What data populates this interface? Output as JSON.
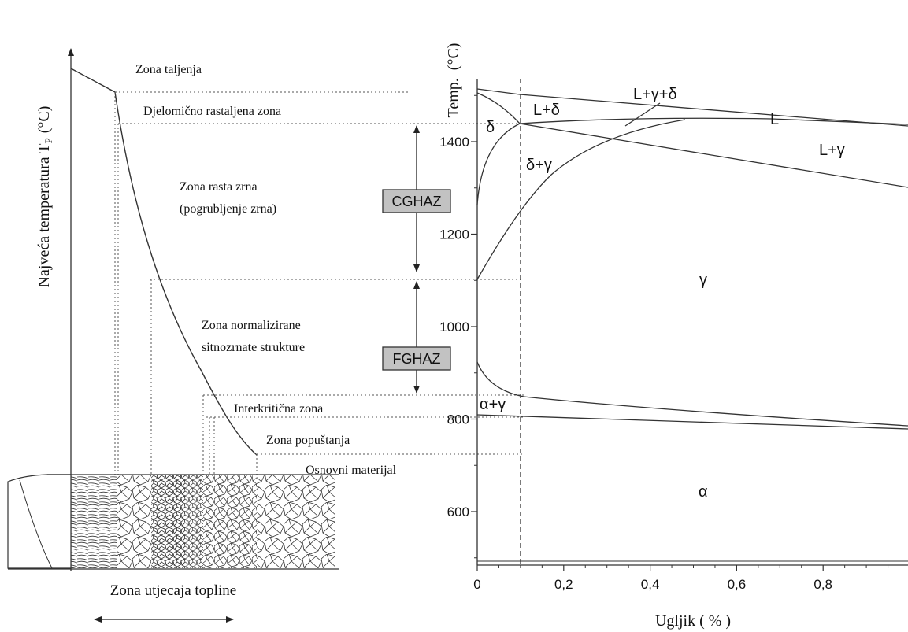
{
  "left_panel": {
    "y_axis_label": "Najveća temperatura T",
    "y_axis_subscript": "P",
    "y_axis_unit": "(°C)",
    "zones": [
      "Zona taljenja",
      "Djelomično rastaljena zona",
      "Zona rasta zrna",
      "(pogrubljenje zrna)",
      "Zona normalizirane",
      "sitnozrnate strukture",
      "Interkritična zona",
      "Zona popuštanja",
      "Osnovni materijal"
    ],
    "bottom_label": "Zona utjecaja topline"
  },
  "haz_boxes": {
    "cghaz": "CGHAZ",
    "fghaz": "FGHAZ"
  },
  "phase_diagram": {
    "y_axis_title": "Temp.",
    "y_axis_unit": "(°C)",
    "x_axis_title": "Ugljik ( % )",
    "phase_labels": {
      "liquid": "L",
      "l_delta": "L+δ",
      "l_gamma_delta": "L+γ+δ",
      "l_gamma": "L+γ",
      "delta": "δ",
      "delta_gamma": "δ+γ",
      "gamma": "γ",
      "alpha_gamma": "α+γ",
      "alpha": "α"
    },
    "y_ticks": [
      {
        "value": 1400,
        "label": "1400"
      },
      {
        "value": 1200,
        "label": "1200"
      },
      {
        "value": 1000,
        "label": "1000"
      },
      {
        "value": 800,
        "label": "800"
      },
      {
        "value": 600,
        "label": "600"
      }
    ],
    "x_ticks": [
      {
        "value": 0,
        "label": "0"
      },
      {
        "value": 0.2,
        "label": "0,2"
      },
      {
        "value": 0.4,
        "label": "0,4"
      },
      {
        "value": 0.6,
        "label": "0,6"
      },
      {
        "value": 0.8,
        "label": "0,8"
      }
    ],
    "marked_carbon_percent": 0.1
  }
}
